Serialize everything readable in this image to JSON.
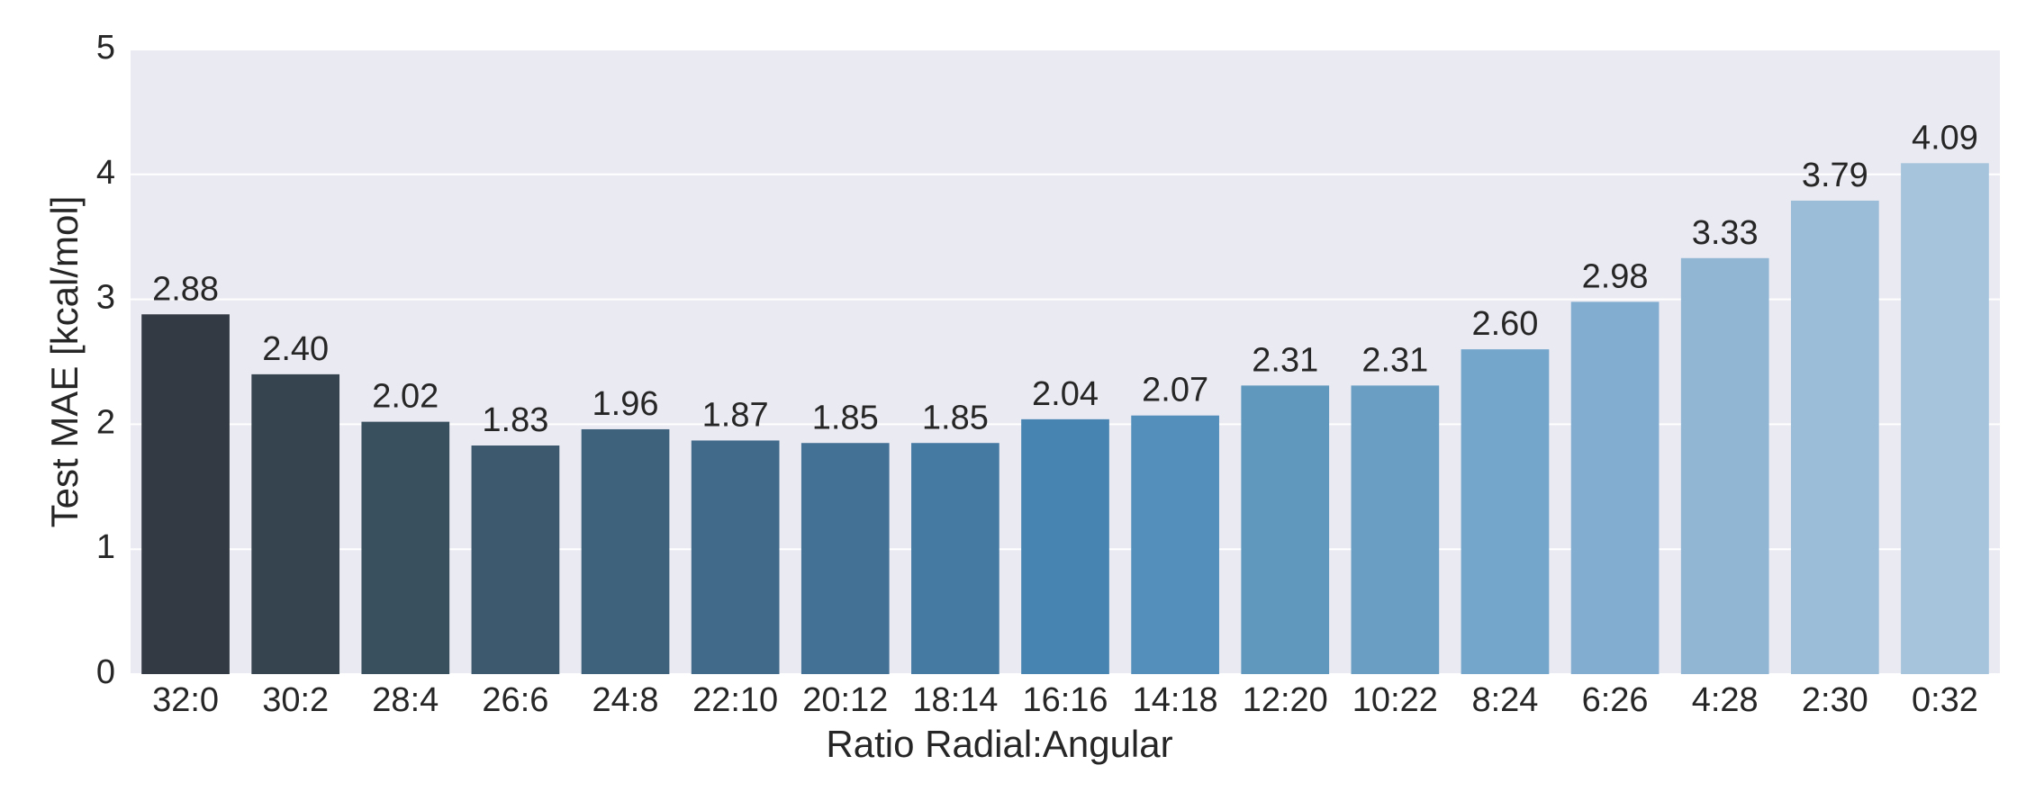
{
  "chart_data": {
    "type": "bar",
    "x_label": "Ratio Radial:Angular",
    "y_label": "Test MAE [kcal/mol]",
    "categories": [
      "32:0",
      "30:2",
      "28:4",
      "26:6",
      "24:8",
      "22:10",
      "20:12",
      "18:14",
      "16:16",
      "14:18",
      "12:20",
      "10:22",
      "8:24",
      "6:26",
      "4:28",
      "2:30",
      "0:32"
    ],
    "values": [
      2.88,
      2.4,
      2.02,
      1.83,
      1.96,
      1.87,
      1.85,
      1.85,
      2.04,
      2.07,
      2.31,
      2.31,
      2.6,
      2.98,
      3.33,
      3.79,
      4.09
    ],
    "value_labels": [
      "2.88",
      "2.40",
      "2.02",
      "1.83",
      "1.96",
      "1.87",
      "1.85",
      "1.85",
      "2.04",
      "2.07",
      "2.31",
      "2.31",
      "2.60",
      "2.98",
      "3.33",
      "3.79",
      "4.09"
    ],
    "colors": [
      "#343a43",
      "#36444f",
      "#39505e",
      "#3c596d",
      "#3e617c",
      "#41698a",
      "#437196",
      "#457aa3",
      "#4884b1",
      "#548fbb",
      "#5f97bd",
      "#6a9fc3",
      "#74a6cb",
      "#82acd0",
      "#90b6d4",
      "#9bbdd8",
      "#a6c5dc"
    ],
    "ylim": [
      0,
      5
    ],
    "yticks": [
      0,
      1,
      2,
      3,
      4,
      5
    ],
    "grid": true
  }
}
